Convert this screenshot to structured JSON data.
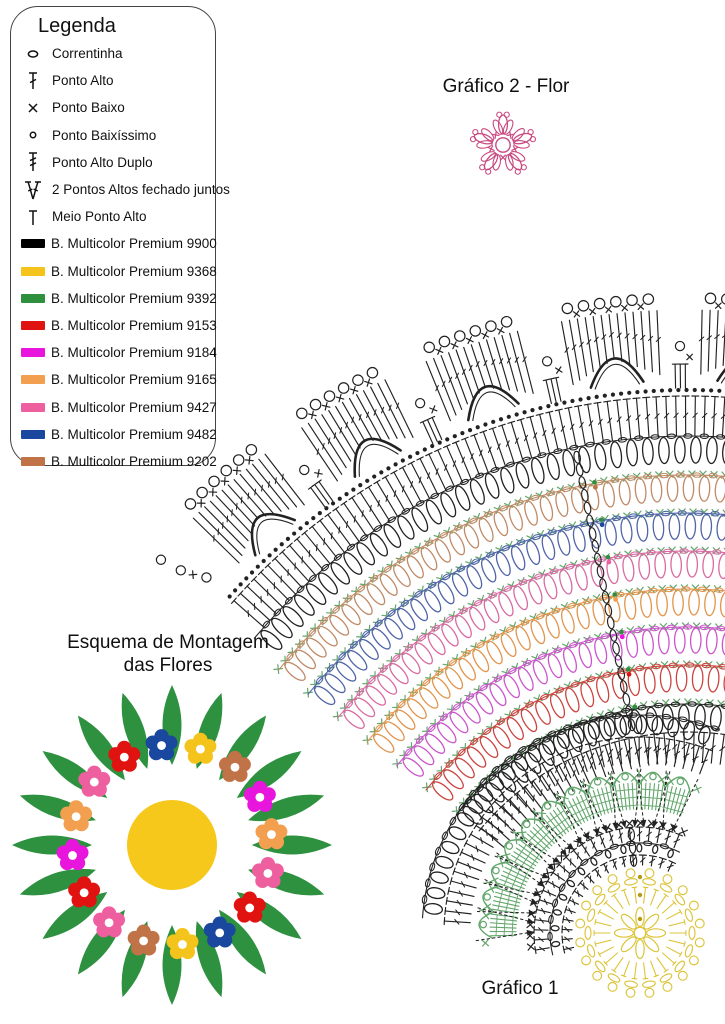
{
  "legend": {
    "title": "Legenda",
    "stitches": [
      {
        "symbol": "chain",
        "label": "Correntinha"
      },
      {
        "symbol": "dc",
        "label": "Ponto Alto"
      },
      {
        "symbol": "sc",
        "label": "Ponto Baixo"
      },
      {
        "symbol": "slst",
        "label": "Ponto Baixíssimo"
      },
      {
        "symbol": "tr",
        "label": "Ponto Alto Duplo"
      },
      {
        "symbol": "dc2tog",
        "label": "2 Pontos Altos fechado juntos"
      },
      {
        "symbol": "hdc",
        "label": "Meio Ponto Alto"
      }
    ],
    "yarns": [
      {
        "code": "9900",
        "color": "#000000",
        "label": "B. Multicolor Premium 9900"
      },
      {
        "code": "9368",
        "color": "#F5C41C",
        "label": "B. Multicolor Premium 9368"
      },
      {
        "code": "9392",
        "color": "#2E8F3C",
        "label": "B. Multicolor Premium 9392"
      },
      {
        "code": "9153",
        "color": "#E01311",
        "label": "B. Multicolor Premium 9153"
      },
      {
        "code": "9184",
        "color": "#E816DC",
        "label": "B. Multicolor Premium 9184"
      },
      {
        "code": "9165",
        "color": "#F2A04F",
        "label": "B. Multicolor Premium 9165"
      },
      {
        "code": "9427",
        "color": "#EE5F9F",
        "label": "B. Multicolor Premium 9427"
      },
      {
        "code": "9482",
        "color": "#1A489E",
        "label": "B. Multicolor Premium 9482"
      },
      {
        "code": "9202",
        "color": "#BF7347",
        "label": "B. Multicolor Premium 9202"
      }
    ]
  },
  "titles": {
    "grafico2": "Gráfico 2 - Flor",
    "grafico1": "Gráfico 1",
    "montagem_line1": "Esquema de Montagem",
    "montagem_line2": "das Flores"
  },
  "fan": {
    "description": "quarter-fan doily chart, rows outer edge to center",
    "rows_outer_to_inner": [
      {
        "type": "shell-edge",
        "yarn": "9900",
        "stroke": "#222222"
      },
      {
        "type": "dots-row",
        "yarn": "9900",
        "stroke": "#222222"
      },
      {
        "type": "tall-row",
        "yarn": "9900",
        "stroke": "#222222"
      },
      {
        "type": "loop-row",
        "yarn": "9900",
        "stroke": "#222222"
      },
      {
        "type": "x-row",
        "yarn": "9392",
        "stroke": "#63A76C"
      },
      {
        "type": "loop-row",
        "yarn": "9202",
        "stroke": "#C08A66"
      },
      {
        "type": "x-row",
        "yarn": "9392",
        "stroke": "#63A76C"
      },
      {
        "type": "loop-row",
        "yarn": "9482",
        "stroke": "#5064A8"
      },
      {
        "type": "x-row",
        "yarn": "9392",
        "stroke": "#63A76C"
      },
      {
        "type": "loop-row",
        "yarn": "9427",
        "stroke": "#D96AA2"
      },
      {
        "type": "x-row",
        "yarn": "9392",
        "stroke": "#63A76C"
      },
      {
        "type": "loop-row",
        "yarn": "9165",
        "stroke": "#E2944C"
      },
      {
        "type": "x-row",
        "yarn": "9392",
        "stroke": "#63A76C"
      },
      {
        "type": "loop-row",
        "yarn": "9184",
        "stroke": "#CC55CC"
      },
      {
        "type": "x-row",
        "yarn": "9392",
        "stroke": "#63A76C"
      },
      {
        "type": "loop-row",
        "yarn": "9153",
        "stroke": "#CC4440"
      },
      {
        "type": "x-row",
        "yarn": "9392",
        "stroke": "#63A76C"
      },
      {
        "type": "loop-row",
        "yarn": "9900",
        "stroke": "#222222"
      },
      {
        "type": "tall-row",
        "yarn": "9900",
        "stroke": "#222222"
      },
      {
        "type": "loop-row",
        "yarn": "9900",
        "stroke": "#222222"
      },
      {
        "type": "tall-row",
        "yarn": "9900",
        "stroke": "#222222"
      },
      {
        "type": "leaf-band",
        "yarn": "9392",
        "stroke": "#63A76C"
      },
      {
        "type": "x-row",
        "yarn": "9900",
        "stroke": "#222222"
      },
      {
        "type": "tall-row",
        "yarn": "9900",
        "stroke": "#222222"
      },
      {
        "type": "loop-row",
        "yarn": "9900",
        "stroke": "#222222"
      },
      {
        "type": "tall-row",
        "yarn": "9900",
        "stroke": "#222222"
      }
    ],
    "start_marker_dots": [
      "#2E8F3C",
      "#BF7347",
      "#1A489E",
      "#EE5F9F",
      "#F2A04F",
      "#E816DC",
      "#E01311"
    ]
  },
  "grafico2_flor": {
    "petals": 5,
    "yarn": "9427",
    "stroke": "#C94980"
  },
  "grafico1_motif": {
    "yarn": "9368",
    "stroke": "#DCC43A",
    "rounds": [
      "center ring",
      "8 petal loops",
      "tall stitches",
      "chain loops",
      "picot rings"
    ]
  },
  "montagem": {
    "leaf_count": 20,
    "leaf_yarn": "9392",
    "leaf_color": "#2E9140",
    "center_yarn": "9368",
    "center_color": "#F5C81B",
    "flower_ring_yarns_clockwise_from_top": [
      "9482",
      "9368",
      "9202",
      "9184",
      "9165",
      "9427",
      "9153",
      "9482",
      "9368",
      "9202",
      "9427",
      "9153",
      "9184",
      "9165",
      "9427",
      "9153"
    ]
  }
}
